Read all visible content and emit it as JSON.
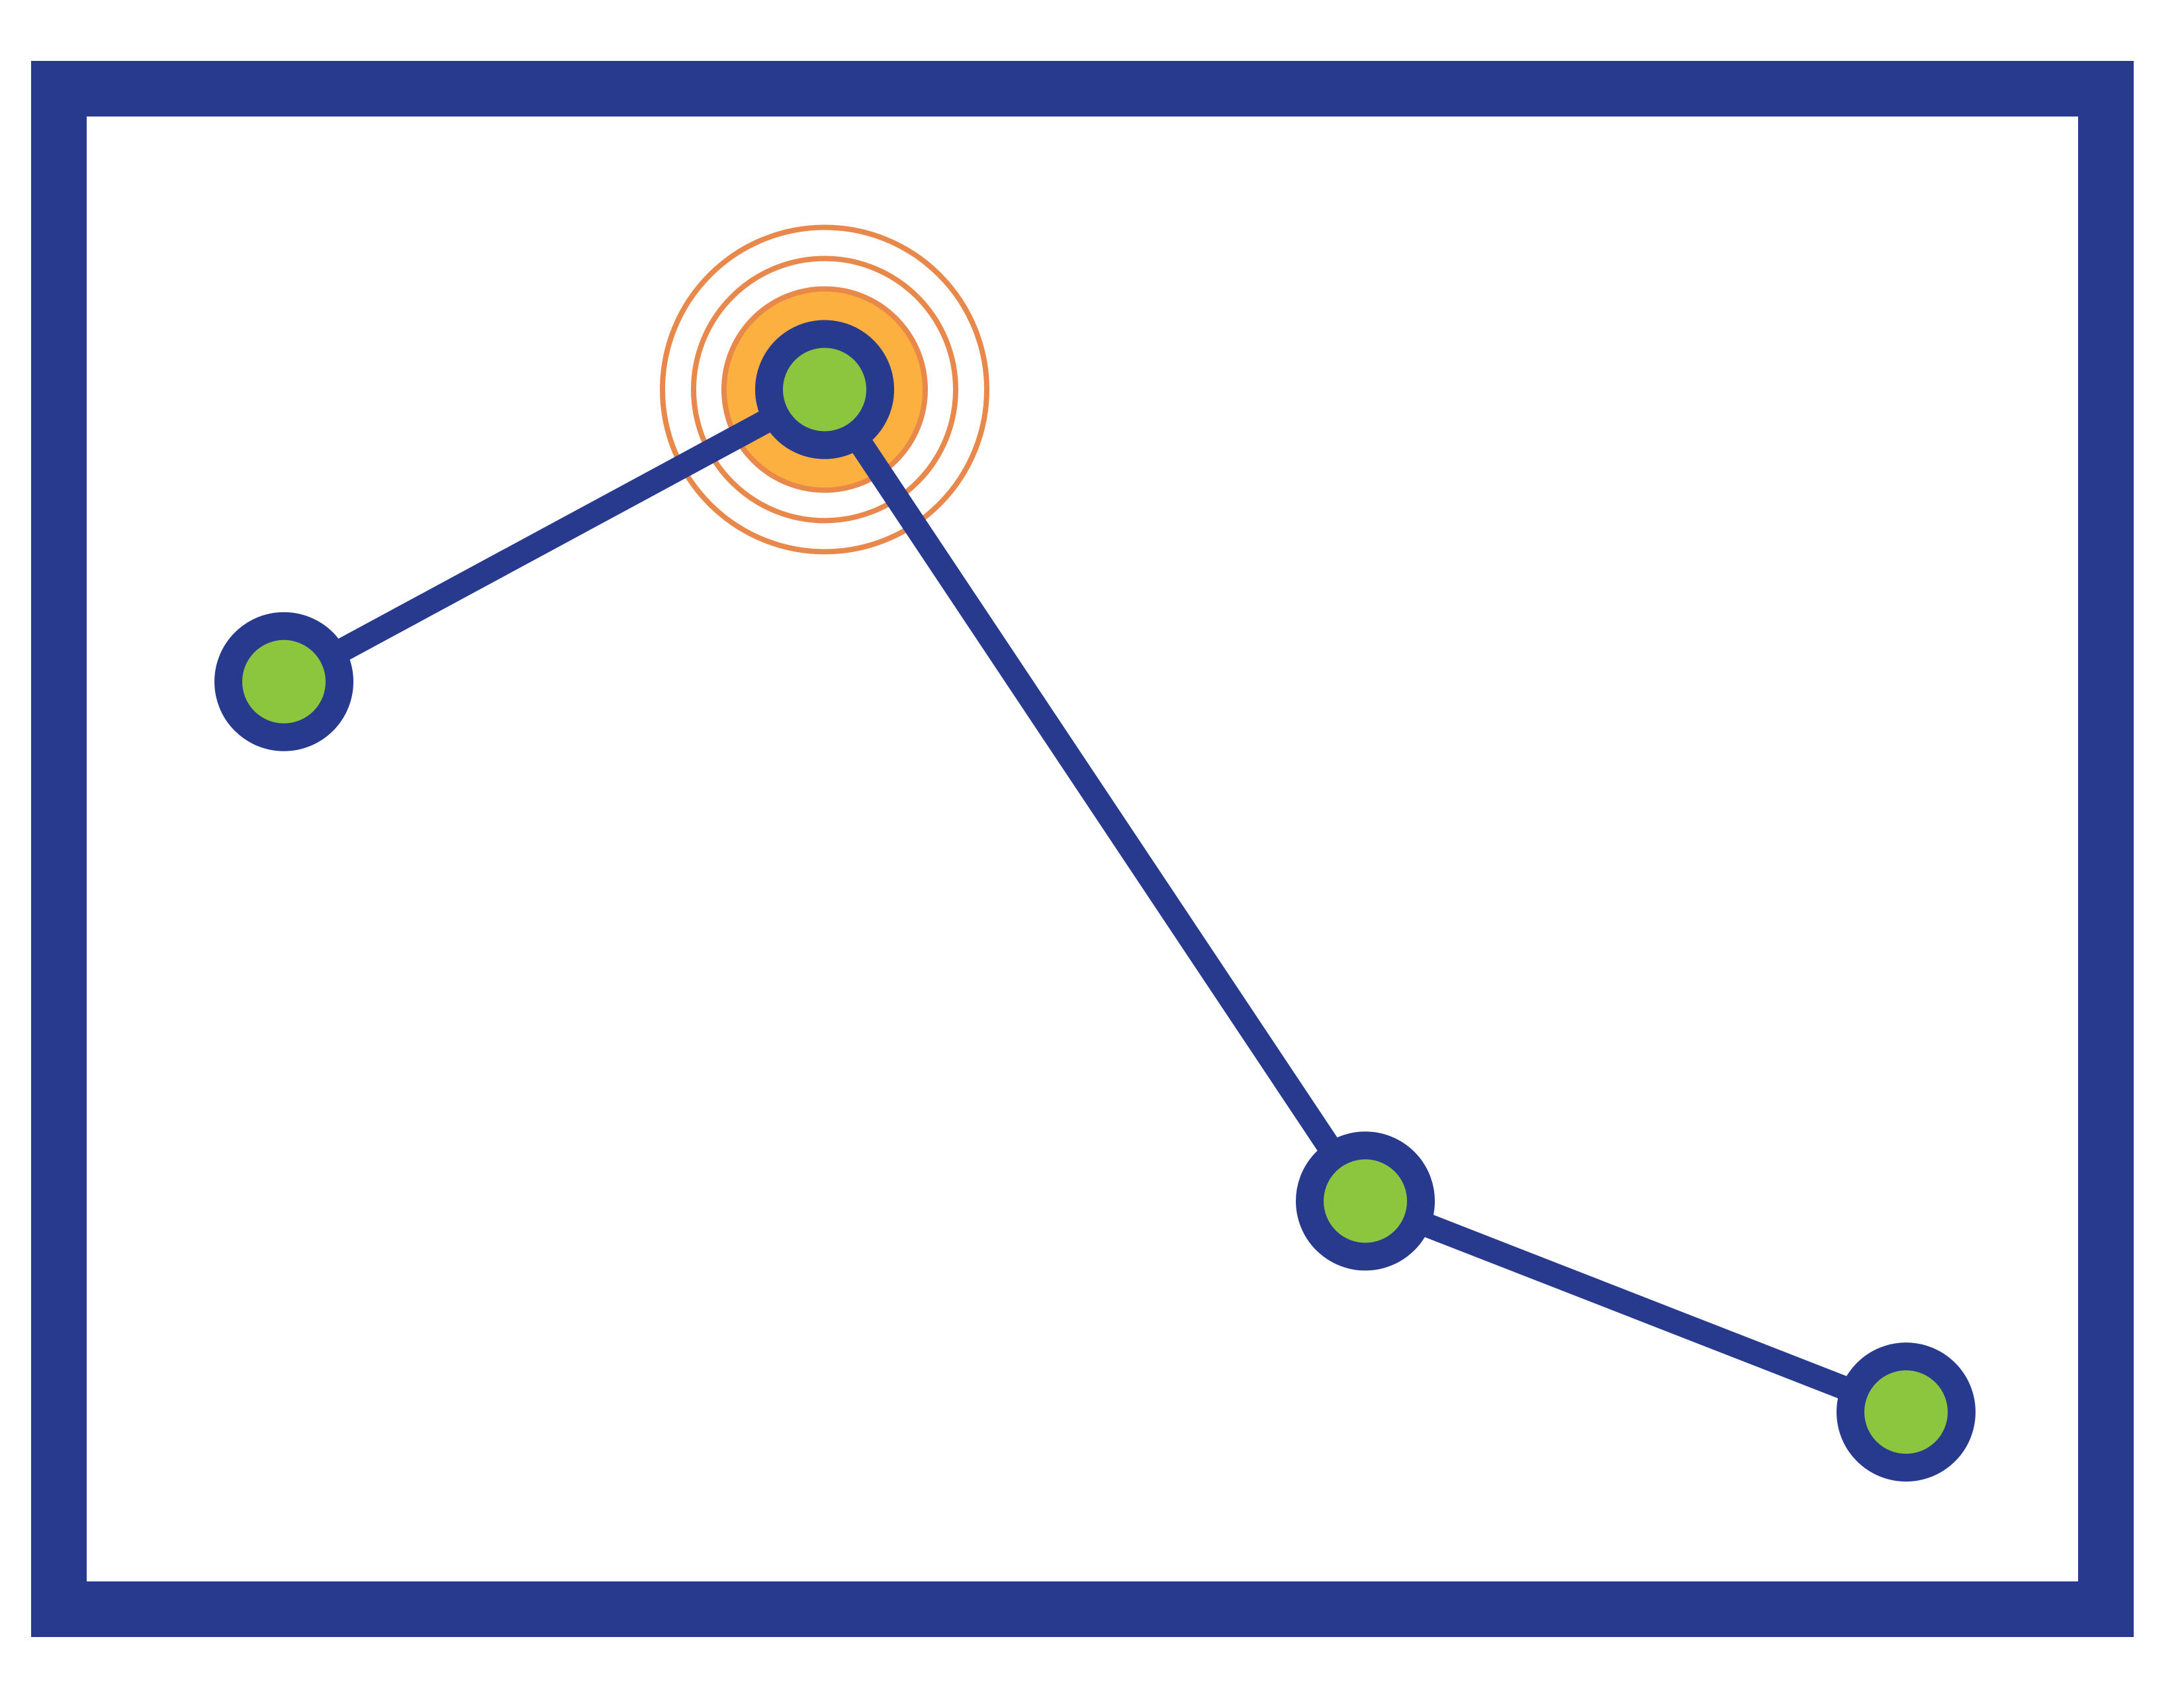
{
  "colors": {
    "frame": "#283a8e",
    "line": "#283a8e",
    "marker_fill": "#8cc63f",
    "marker_ring": "#283a8e",
    "highlight_fill": "#fbb040",
    "highlight_ripple": "#e8884a",
    "background": "#ffffff"
  },
  "chart_data": {
    "type": "line",
    "x": [
      1,
      2,
      3,
      4
    ],
    "values": [
      2.1,
      3.0,
      0.5,
      -0.15
    ],
    "ylim": [
      -1.0,
      4.2
    ],
    "grid": false,
    "highlighted_point_index": 1,
    "marker_style": "circle",
    "title": "",
    "xlabel": "",
    "ylabel": ""
  }
}
